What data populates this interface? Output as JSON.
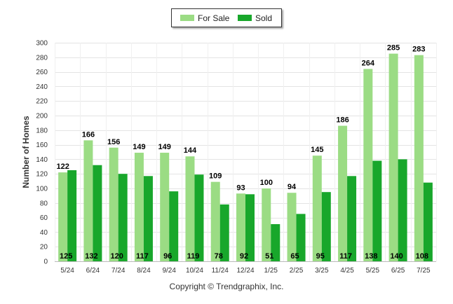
{
  "legend": {
    "for_sale_label": "For Sale",
    "sold_label": "Sold"
  },
  "footer": {
    "copyright": "Copyright © Trendgraphix, Inc."
  },
  "colors": {
    "for_sale": "#9bdc84",
    "sold": "#18a72b"
  },
  "chart_data": {
    "type": "bar",
    "categories": [
      "5/24",
      "6/24",
      "7/24",
      "8/24",
      "9/24",
      "10/24",
      "11/24",
      "12/24",
      "1/25",
      "2/25",
      "3/25",
      "4/25",
      "5/25",
      "6/25",
      "7/25"
    ],
    "series": [
      {
        "name": "For Sale",
        "values": [
          122,
          166,
          156,
          149,
          149,
          144,
          109,
          93,
          100,
          94,
          145,
          186,
          264,
          285,
          283
        ]
      },
      {
        "name": "Sold",
        "values": [
          125,
          132,
          120,
          117,
          96,
          119,
          78,
          92,
          51,
          65,
          95,
          117,
          138,
          140,
          108
        ]
      }
    ],
    "ylabel": "Number of Homes",
    "xlabel": "",
    "ylim": [
      0,
      300
    ],
    "yticks": [
      0,
      20,
      40,
      60,
      80,
      100,
      120,
      140,
      160,
      180,
      200,
      220,
      240,
      260,
      280,
      300
    ],
    "grid": true,
    "legend_position": "top-center"
  }
}
